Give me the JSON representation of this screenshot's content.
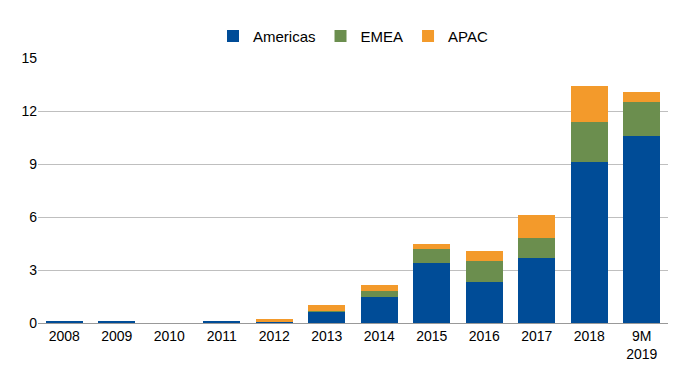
{
  "chart_data": {
    "type": "bar",
    "stacked": true,
    "grid": true,
    "legend": "top",
    "categories": [
      "2008",
      "2009",
      "2010",
      "2011",
      "2012",
      "2013",
      "2014",
      "2015",
      "2016",
      "2017",
      "2018",
      "9M 2019"
    ],
    "series": [
      {
        "name": "Americas",
        "color": "#004c97",
        "values": [
          0.1,
          0.1,
          0,
          0.1,
          0.05,
          0.6,
          1.5,
          3.4,
          2.3,
          3.7,
          9.1,
          10.6
        ]
      },
      {
        "name": "EMEA",
        "color": "#6b8e4e",
        "values": [
          0,
          0,
          0,
          0,
          0,
          0.1,
          0.3,
          0.8,
          1.2,
          1.1,
          2.3,
          1.9
        ]
      },
      {
        "name": "APAC",
        "color": "#f39a2b",
        "values": [
          0,
          0,
          0,
          0,
          0.2,
          0.3,
          0.35,
          0.25,
          0.6,
          1.3,
          2.0,
          0.6
        ]
      }
    ],
    "ylim": [
      0,
      15
    ],
    "yticks": [
      0,
      3,
      6,
      9,
      12,
      15
    ]
  }
}
